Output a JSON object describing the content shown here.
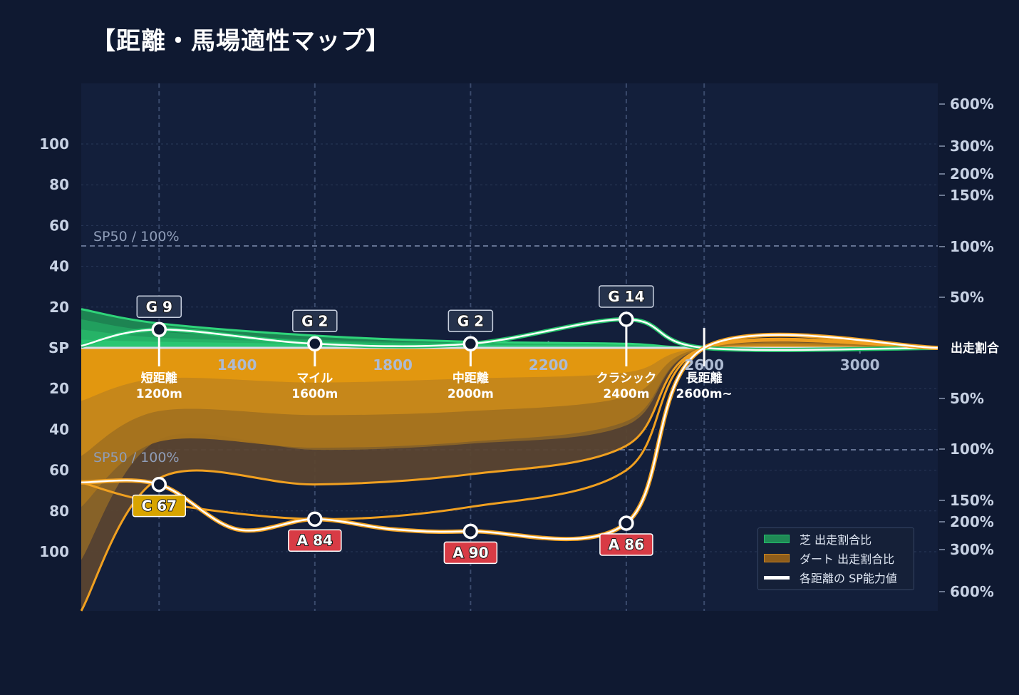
{
  "title": "【距離・馬場適性マップ】",
  "colors": {
    "turf": "#23c06a",
    "dirt": "#f0a020",
    "sp": "#ffffff",
    "bg": "#0f1931",
    "plot": "#131f3b"
  },
  "y_left_ticks": [
    "100",
    "80",
    "60",
    "40",
    "20",
    "SP",
    "20",
    "40",
    "60",
    "80",
    "100"
  ],
  "y_right_ticks_top": [
    "600%",
    "300%",
    "200%",
    "150%",
    "100%",
    "50%"
  ],
  "y_right_center": "出走割合",
  "y_right_ticks_bottom": [
    "50%",
    "100%",
    "150%",
    "200%",
    "300%",
    "600%"
  ],
  "ref_label": "SP50 / 100%",
  "ref_label_bottom": "SP50 / 100%",
  "x_ticks": [
    "1400",
    "1800",
    "2200",
    "2600",
    "3000"
  ],
  "segments": [
    {
      "name": "短距離",
      "dist": "1200m"
    },
    {
      "name": "マイル",
      "dist": "1600m"
    },
    {
      "name": "中距離",
      "dist": "2000m"
    },
    {
      "name": "クラシック",
      "dist": "2400m"
    },
    {
      "name": "長距離",
      "dist": "2600m~"
    }
  ],
  "turf_badges": [
    "G 9",
    "G 2",
    "G 2",
    "G 14"
  ],
  "dirt_badges": [
    {
      "text": "C 67",
      "color": "#d8a400"
    },
    {
      "text": "A 84",
      "color": "#d83b45"
    },
    {
      "text": "A 90",
      "color": "#d83b45"
    },
    {
      "text": "A 86",
      "color": "#d83b45"
    }
  ],
  "legend": {
    "turf": "芝 出走割合比",
    "dirt": "ダート 出走割合比",
    "sp": "各距離の SP能力値"
  },
  "chart_data": {
    "type": "area",
    "x": [
      1200,
      1600,
      2000,
      2400,
      2600
    ],
    "x_categories": [
      "短距離 1200m",
      "マイル 1600m",
      "中距離 2000m",
      "クラシック 2400m",
      "長距離 2600m~"
    ],
    "series": [
      {
        "name": "芝 出走割合比 / 各距離の SP能力値 (芝)",
        "values": [
          9,
          2,
          2,
          14,
          0
        ],
        "grades": [
          "G",
          "G",
          "G",
          "G"
        ]
      },
      {
        "name": "ダート 出走割合比 / 各距離の SP能力値 (ダート)",
        "values": [
          67,
          84,
          90,
          86,
          0
        ],
        "grades": [
          "C",
          "A",
          "A",
          "A"
        ]
      }
    ],
    "xlim": [
      1000,
      3200
    ],
    "ylim": [
      0,
      100
    ],
    "sp_reference": 50
  }
}
